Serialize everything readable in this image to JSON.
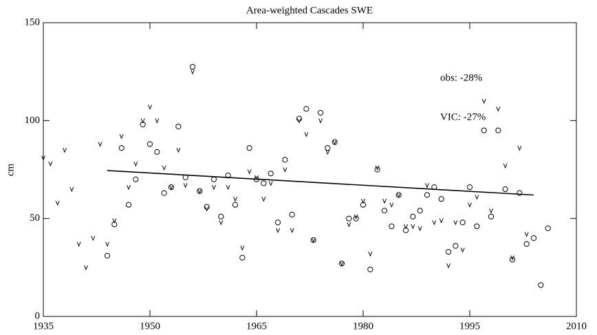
{
  "chart_data": {
    "type": "scatter",
    "title": "Area-weighted Cascades SWE",
    "y_label": "cm",
    "annotations": [
      "obs: -28%",
      "VIC: -27%"
    ],
    "xlim": [
      1935,
      2010
    ],
    "xticks": [
      1935,
      1950,
      1965,
      1980,
      1995,
      2010
    ],
    "ylim": [
      0,
      150
    ],
    "yticks": [
      0,
      50,
      100,
      150
    ],
    "series": [
      {
        "type": "scatter",
        "marker": "circle",
        "color": "#000000",
        "x": [
          1944,
          1945,
          1946,
          1947,
          1948,
          1949,
          1950,
          1951,
          1952,
          1953,
          1954,
          1955,
          1956,
          1957,
          1958,
          1959,
          1960,
          1961,
          1962,
          1963,
          1964,
          1965,
          1966,
          1967,
          1968,
          1969,
          1970,
          1971,
          1972,
          1973,
          1974,
          1975,
          1976,
          1977,
          1978,
          1979,
          1980,
          1981,
          1982,
          1983,
          1984,
          1985,
          1986,
          1987,
          1988,
          1989,
          1990,
          1991,
          1992,
          1993,
          1994,
          1995,
          1996,
          1997,
          1998,
          1999,
          2000,
          2001,
          2002,
          2003,
          2004,
          2005,
          2006
        ],
        "values": [
          31,
          47,
          86,
          57,
          70,
          98,
          88,
          84,
          63,
          66,
          97,
          71,
          127.5,
          64,
          56,
          70,
          51,
          72,
          57,
          30,
          86,
          70,
          68,
          73,
          48,
          80,
          52,
          101,
          106,
          39,
          104,
          86,
          89,
          27,
          50,
          50,
          57,
          24,
          75,
          54,
          46,
          62,
          44,
          51,
          54,
          62,
          66,
          60,
          33,
          36,
          48,
          66,
          46,
          95,
          51,
          95,
          65,
          29,
          63,
          37,
          40,
          16,
          45
        ]
      },
      {
        "type": "scatter",
        "marker": "v",
        "color": "#000000",
        "x": [
          1935,
          1936,
          1937,
          1938,
          1939,
          1940,
          1941,
          1942,
          1943,
          1944,
          1945,
          1946,
          1947,
          1948,
          1949,
          1950,
          1951,
          1952,
          1953,
          1954,
          1955,
          1956,
          1957,
          1958,
          1959,
          1960,
          1961,
          1962,
          1963,
          1964,
          1965,
          1966,
          1967,
          1968,
          1969,
          1970,
          1971,
          1972,
          1973,
          1974,
          1975,
          1976,
          1977,
          1978,
          1979,
          1980,
          1981,
          1982,
          1983,
          1984,
          1985,
          1986,
          1987,
          1988,
          1989,
          1990,
          1991,
          1992,
          1993,
          1994,
          1995,
          1996,
          1997,
          1998,
          1999,
          2000,
          2001,
          2002,
          2003
        ],
        "values": [
          81,
          78,
          58,
          85,
          65,
          37,
          25,
          40,
          88,
          37,
          49,
          92,
          66,
          78,
          100,
          107,
          100,
          76,
          66,
          85,
          67,
          125,
          64,
          55,
          66,
          48,
          66,
          60,
          35,
          74,
          71,
          60,
          68,
          44,
          75,
          44,
          100,
          93,
          39,
          100,
          84,
          89,
          27,
          47,
          51,
          59,
          32,
          76,
          59,
          57,
          62,
          46,
          46,
          45,
          67,
          48,
          49,
          26,
          48,
          34,
          57,
          61,
          110,
          54,
          106,
          77,
          30,
          86,
          42
        ]
      },
      {
        "type": "line",
        "color": "#000000",
        "x": [
          1944,
          2004
        ],
        "values": [
          74.5,
          62
        ]
      }
    ]
  }
}
